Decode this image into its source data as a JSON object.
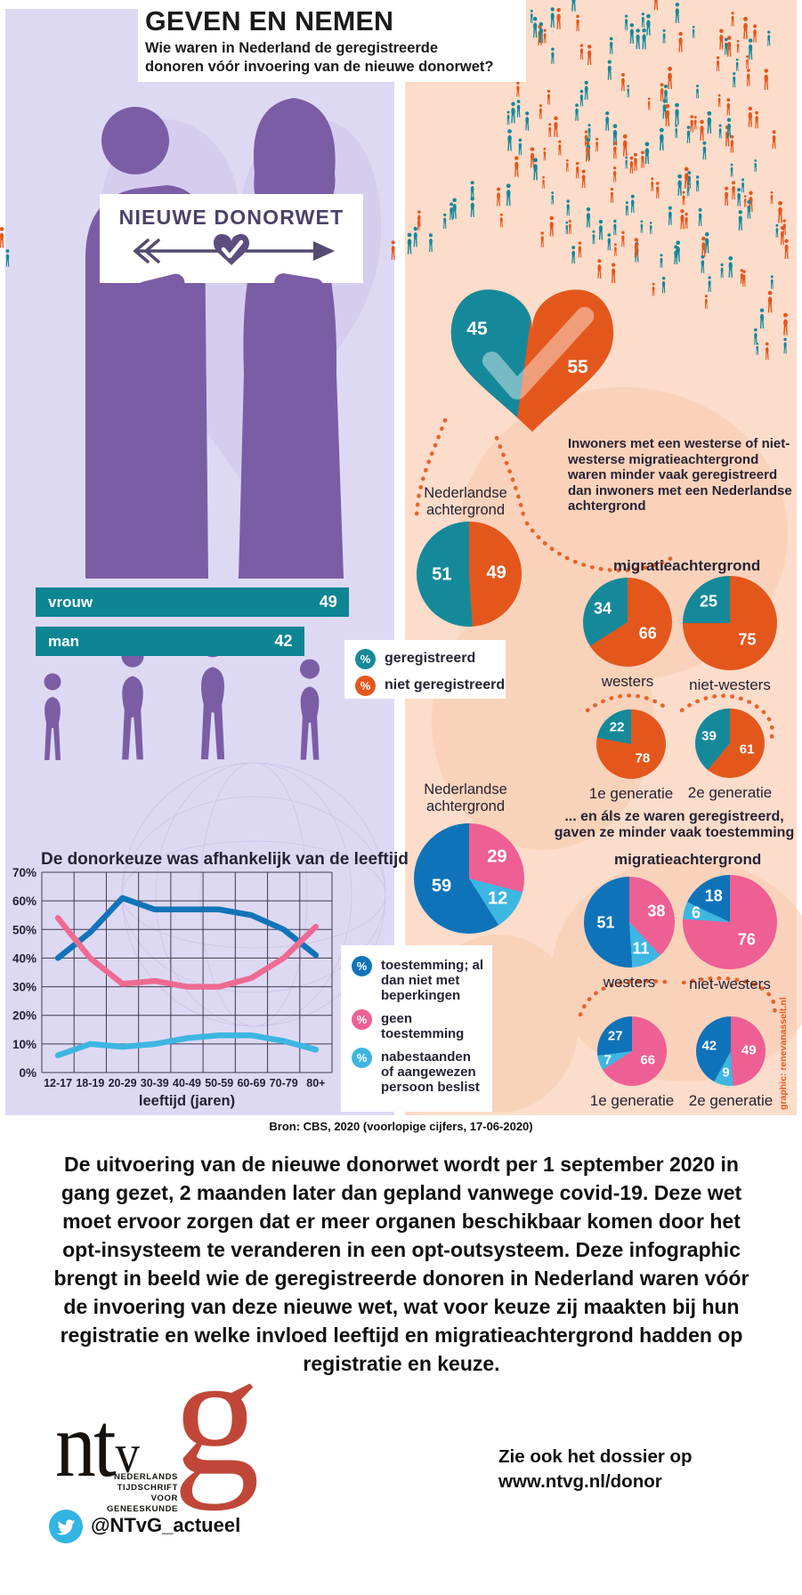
{
  "page": {
    "title": "GEVEN EN NEMEN",
    "subtitle_lines": [
      "Wie waren in Nederland de geregistreerde",
      "donoren vóór invoering van de nieuwe donorwet?"
    ],
    "percent_symbol": "%"
  },
  "sign": {
    "label": "NIEUWE DONORWET"
  },
  "colors": {
    "teal": "#15899a",
    "orange": "#e4571c",
    "dark_blue": "#0f73b9",
    "pink": "#ee5f94",
    "light_blue": "#3db6e2",
    "purple": "#7b5da6",
    "lavender": "#ded9f3",
    "peach": "#fcdcca",
    "ntvg_red": "#c04737",
    "twitter_blue": "#32b4e5"
  },
  "registration": {
    "note": "Inwoners met een westerse of niet-westerse migratieachtergrond waren minder vaak geregistreerd dan inwoners met een Nederlandse achtergrond",
    "nl_label_lines": [
      "Nederlandse",
      "achtergrond"
    ],
    "group_label": "migratieachtergrond",
    "legend": [
      {
        "label": "geregistreerd"
      },
      {
        "label": "niet geregistreerd"
      }
    ]
  },
  "consent": {
    "note_lines": [
      "... en áls ze waren geregistreerd,",
      "gaven ze minder vaak toestemming"
    ],
    "nl_label_lines": [
      "Nederlandse",
      "achtergrond"
    ],
    "group_label": "migratieachtergrond",
    "legend": [
      {
        "label": "toestemming; al dan niet met beperkingen"
      },
      {
        "label": "geen toestemming"
      },
      {
        "label": "nabestaanden of aangewezen persoon beslist"
      }
    ]
  },
  "source": "Bron: CBS, 2020 (voorlopige cijfers, 17-06-2020)",
  "credit": "graphic: renevanasselt.nl",
  "body_text": "De uitvoering van de nieuwe donorwet wordt per 1 september 2020 in gang gezet, 2 maanden later dan gepland vanwege covid-19. Deze wet moet ervoor zorgen dat er meer organen beschikbaar komen door het opt-insysteem te veranderen in een opt-outsysteem. Deze infographic brengt in beeld wie de geregistreerde donoren in Nederland waren vóór de invoering van deze nieuwe wet, wat voor keuze zij maakten bij hun registratie en welke invloed leeftijd en migratieachtergrond hadden op registratie en keuze.",
  "footer": {
    "logo_ntv": "ntv",
    "logo_g": "g",
    "logo_caption_lines": [
      "NEDERLANDS",
      "TIJDSCHRIFT",
      "VOOR",
      "GENEESKUNDE"
    ],
    "dossier_lines": [
      "Zie ook het dossier op",
      "www.ntvg.nl/donor"
    ],
    "twitter_handle": "@NTvG_actueel"
  },
  "chart_data": [
    {
      "id": "heart_split",
      "type": "pie",
      "shape": "heart",
      "categories": [
        "geregistreerd",
        "niet geregistreerd"
      ],
      "values": [
        45,
        55
      ],
      "colors": [
        "#15899a",
        "#e4571c"
      ]
    },
    {
      "id": "gender_bars",
      "type": "bar",
      "categories": [
        "vrouw",
        "man"
      ],
      "values": [
        49,
        42
      ],
      "bar_color": "#0e8593"
    },
    {
      "id": "registration_by_background",
      "type": "pie",
      "legend": [
        "geregistreerd",
        "niet geregistreerd"
      ],
      "slice_colors": [
        "#15899a",
        "#e4571c"
      ],
      "draw_order": [
        1,
        0
      ],
      "pies": [
        {
          "label": "Nederlandse achtergrond",
          "values": [
            51,
            49
          ]
        },
        {
          "label": "westers",
          "values": [
            34,
            66
          ]
        },
        {
          "label": "niet-westers",
          "values": [
            25,
            75
          ]
        },
        {
          "label": "1e generatie",
          "values": [
            22,
            78
          ]
        },
        {
          "label": "2e generatie",
          "values": [
            39,
            61
          ]
        }
      ]
    },
    {
      "id": "choice_by_background",
      "type": "pie",
      "legend": [
        "toestemming; al dan niet met beperkingen",
        "geen toestemming",
        "nabestaanden of aangewezen persoon beslist"
      ],
      "slice_colors": [
        "#0f73b9",
        "#ee5f94",
        "#3db6e2"
      ],
      "draw_order": [
        1,
        2,
        0
      ],
      "pies": [
        {
          "label": "Nederlandse achtergrond",
          "values": [
            59,
            29,
            12
          ]
        },
        {
          "label": "westers",
          "values": [
            51,
            38,
            11
          ]
        },
        {
          "label": "niet-westers",
          "values": [
            18,
            76,
            6
          ]
        },
        {
          "label": "1e generatie",
          "values": [
            27,
            66,
            7
          ]
        },
        {
          "label": "2e generatie",
          "values": [
            42,
            49,
            9
          ]
        }
      ]
    },
    {
      "id": "age_line",
      "type": "line",
      "title": "De donorkeuze was afhankelijk van de leeftijd",
      "xlabel": "leeftijd (jaren)",
      "categories": [
        "12-17",
        "18-19",
        "20-29",
        "30-39",
        "40-49",
        "50-59",
        "60-69",
        "70-79",
        "80+"
      ],
      "ylim": [
        0,
        70
      ],
      "ytick_step": 10,
      "grid": true,
      "series": [
        {
          "name": "toestemming; al dan niet met beperkingen",
          "color": "#1173b8",
          "values": [
            40,
            49,
            61,
            57,
            57,
            57,
            55,
            50,
            41
          ]
        },
        {
          "name": "geen toestemming",
          "color": "#ee6a93",
          "values": [
            54,
            40,
            31,
            32,
            30,
            30,
            33,
            40,
            51
          ]
        },
        {
          "name": "nabestaanden of aangewezen persoon beslist",
          "color": "#3db6e2",
          "values": [
            6,
            10,
            9,
            10,
            12,
            13,
            13,
            11,
            8
          ]
        }
      ]
    },
    {
      "id": "population_pictogram",
      "type": "pictogram",
      "description": "kaart van Nederland opgebouwd uit figuren",
      "colors": [
        "#15899a",
        "#e4571c"
      ],
      "teal_fraction": 0.45,
      "count": 195
    }
  ]
}
